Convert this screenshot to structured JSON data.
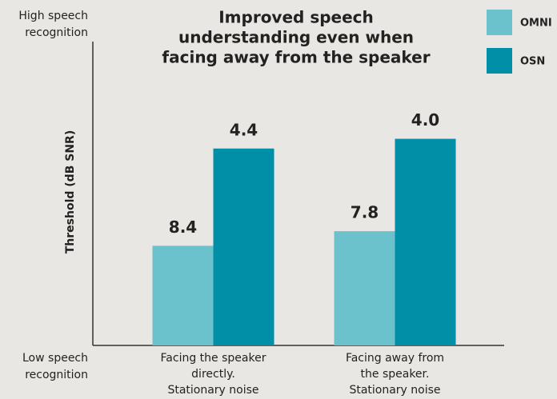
{
  "chart_data": {
    "type": "bar",
    "title": [
      "Improved speech",
      "understanding even when",
      "facing away from the speaker"
    ],
    "y_label": "Threshold (dB SNR)",
    "y_top_annotation": [
      "High speech",
      "recognition"
    ],
    "y_bottom_annotation": [
      "Low speech",
      "recognition"
    ],
    "categories": [
      [
        "Facing the speaker",
        "directly.",
        "Stationary noise"
      ],
      [
        "Facing away from",
        "the speaker.",
        "Stationary noise"
      ]
    ],
    "series": [
      {
        "name": "OMNI",
        "color": "#6cc2cc",
        "values": [
          8.4,
          7.8
        ],
        "value_labels": [
          "8.4",
          "7.8"
        ]
      },
      {
        "name": "OSN",
        "color": "#008fa7",
        "values": [
          4.4,
          4.0
        ],
        "value_labels": [
          "4.4",
          "4.0"
        ]
      }
    ],
    "ylim": [
      12.5,
      0
    ],
    "y_inverted": true,
    "legend": "top-right"
  }
}
